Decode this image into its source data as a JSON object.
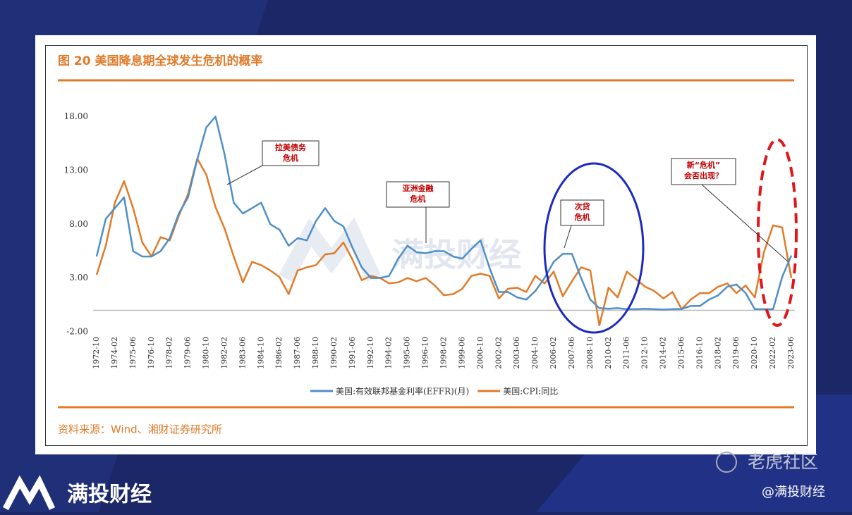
{
  "chart_data": {
    "type": "line",
    "title": "图 20 美国降息期全球发生危机的概率",
    "source": "资料来源：Wind、湘财证券研究所",
    "categories": [
      "1972-10",
      null,
      "1974-02",
      null,
      "1975-06",
      null,
      "1976-10",
      null,
      "1978-02",
      null,
      "1979-06",
      null,
      "1980-10",
      null,
      "1982-02",
      null,
      "1983-06",
      null,
      "1984-10",
      null,
      "1986-02",
      null,
      "1987-06",
      null,
      "1988-10",
      null,
      "1990-02",
      null,
      "1991-06",
      null,
      "1992-10",
      null,
      "1994-02",
      null,
      "1995-06",
      null,
      "1996-10",
      null,
      "1998-02",
      null,
      "1999-06",
      null,
      "2000-10",
      null,
      "2002-02",
      null,
      "2003-06",
      null,
      "2004-10",
      null,
      "2006-02",
      null,
      "2007-06",
      null,
      "2008-10",
      null,
      "2010-02",
      null,
      "2011-06",
      null,
      "2012-10",
      null,
      "2014-02",
      null,
      "2015-06",
      null,
      "2016-10",
      null,
      "2018-02",
      null,
      "2019-06",
      null,
      "2020-10",
      null,
      "2022-02",
      null,
      "2023-06"
    ],
    "series": [
      {
        "name": "美国:有效联邦基金利率(EFFR)(月)",
        "color": "#4f8fc7",
        "values": [
          5.0,
          8.5,
          9.5,
          10.5,
          5.5,
          5.0,
          5.0,
          5.5,
          6.7,
          9.0,
          10.5,
          14,
          17,
          18,
          14.5,
          10,
          9,
          9.5,
          10,
          8,
          7.5,
          6,
          6.7,
          6.5,
          8.3,
          9.5,
          8.3,
          7.8,
          5.8,
          4,
          3,
          3,
          3.2,
          4.8,
          6,
          5.4,
          5.3,
          5.5,
          5.5,
          5,
          4.8,
          5.7,
          6.5,
          3.9,
          1.7,
          1.7,
          1.2,
          1.0,
          1.8,
          3.0,
          4.5,
          5.25,
          5.25,
          3.0,
          1.0,
          0.2,
          0.15,
          0.2,
          0.1,
          0.1,
          0.15,
          0.1,
          0.07,
          0.1,
          0.13,
          0.4,
          0.4,
          1.0,
          1.4,
          2.2,
          2.4,
          1.6,
          0.1,
          0.1,
          0.1,
          3.1,
          5.1
        ]
      },
      {
        "name": "美国:CPI:同比",
        "color": "#e07b2a",
        "values": [
          3.3,
          6,
          10,
          12,
          9.5,
          6.3,
          5,
          6.8,
          6.5,
          8.8,
          10.8,
          14.1,
          12.6,
          9.6,
          7.6,
          5.0,
          2.6,
          4.5,
          4.2,
          3.7,
          3.1,
          1.5,
          3.7,
          4,
          4.2,
          5.2,
          5.3,
          6.3,
          4.7,
          2.8,
          3.2,
          3,
          2.5,
          2.6,
          3.0,
          2.7,
          3.0,
          2.3,
          1.4,
          1.5,
          2.0,
          3.2,
          3.4,
          3.2,
          1.1,
          2.0,
          2.1,
          1.7,
          3.2,
          2.5,
          3.6,
          1.3,
          2.7,
          4.0,
          3.7,
          -1.4,
          2.1,
          1.2,
          3.6,
          2.9,
          2.2,
          1.8,
          1.1,
          1.7,
          0.1,
          1.0,
          1.6,
          1.6,
          2.2,
          2.5,
          1.6,
          2.3,
          1.2,
          5.4,
          7.9,
          7.7,
          3.0
        ]
      }
    ],
    "ylim": [
      -2,
      20
    ],
    "yticks": [
      {
        "value": -2,
        "label": "-2.00"
      },
      {
        "value": 3,
        "label": "3.00"
      },
      {
        "value": 8,
        "label": "8.00"
      },
      {
        "value": 13,
        "label": "13.00"
      },
      {
        "value": 18,
        "label": "18.00"
      }
    ],
    "legend": "bottom",
    "annotations": [
      {
        "lines": [
          "拉美债务",
          "危机"
        ]
      },
      {
        "lines": [
          "亚洲金融",
          "危机"
        ]
      },
      {
        "lines": [
          "次贷",
          "危机"
        ]
      },
      {
        "lines": [
          "新“危机”",
          "会否出现？"
        ]
      }
    ]
  },
  "watermark": "满投财经",
  "footer": {
    "logo_text": "满投财经",
    "community": "老虎社区",
    "handle": "@满投财经"
  }
}
